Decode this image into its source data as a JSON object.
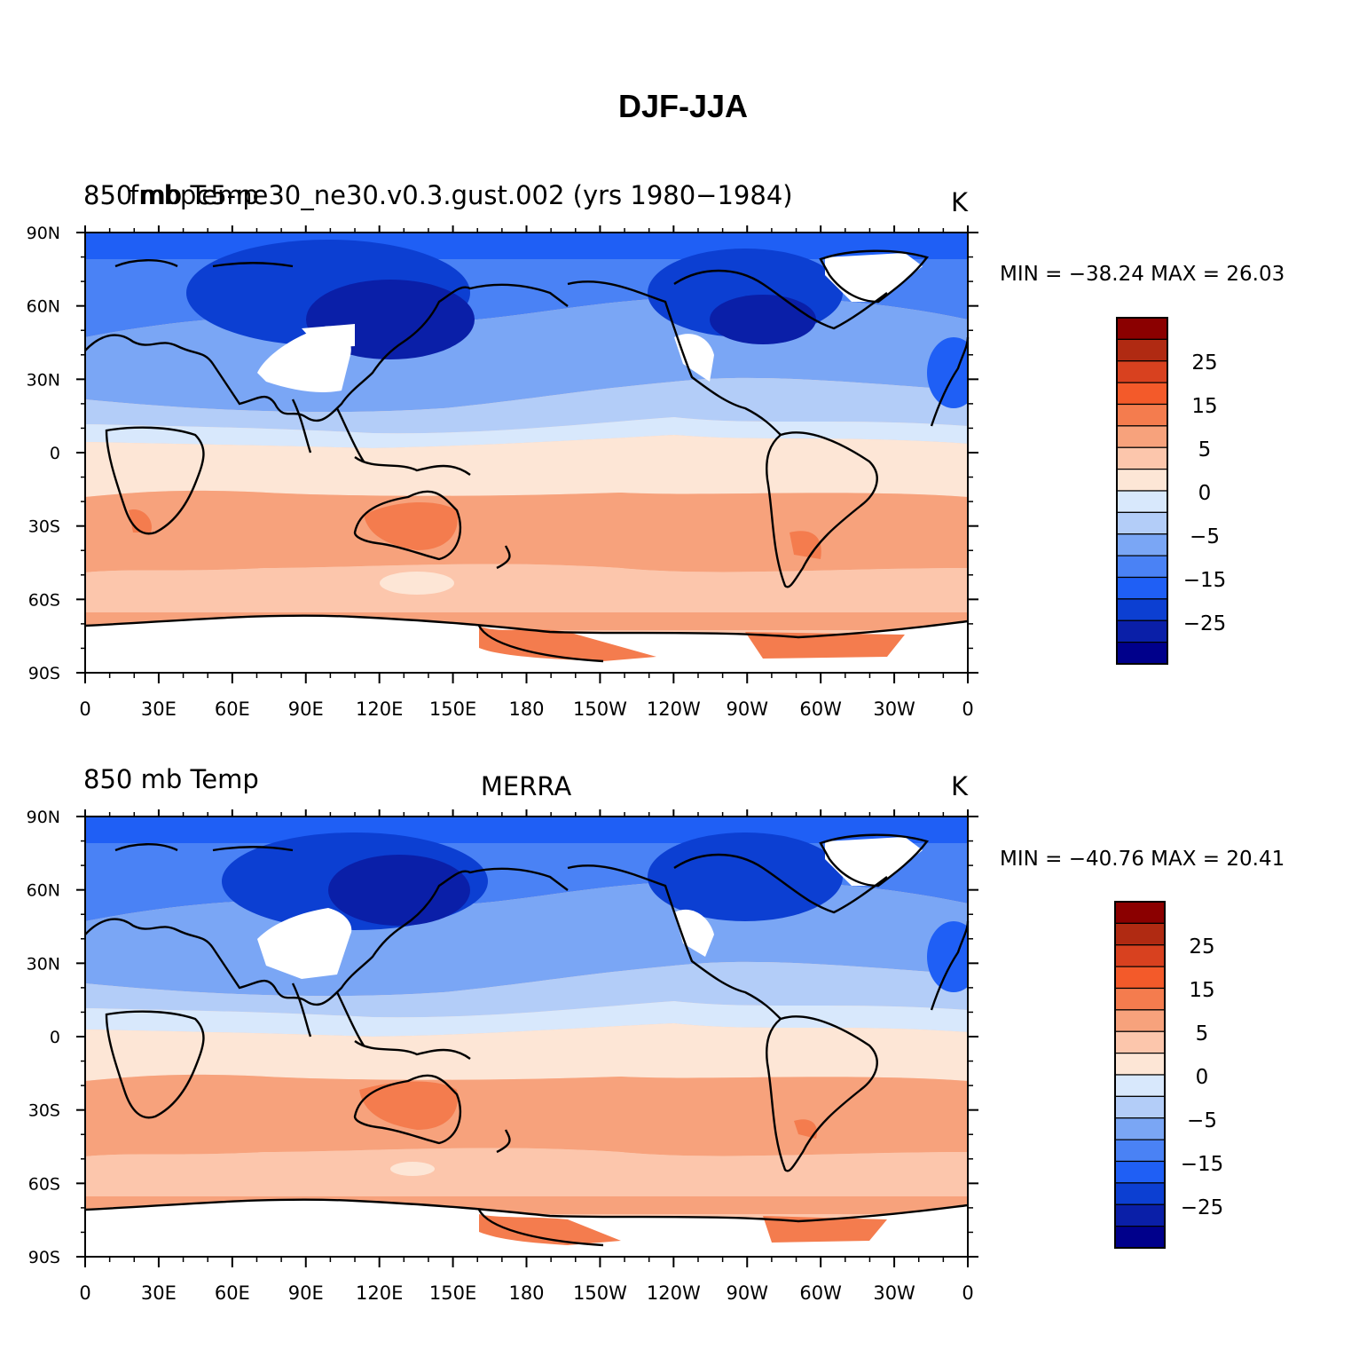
{
  "figure": {
    "title": "DJF-JJA"
  },
  "colorbar": {
    "colors": [
      "#00008b",
      "#0a1fa8",
      "#0c3fd2",
      "#1f5ff5",
      "#4a82f5",
      "#7aa6f5",
      "#b3cdf8",
      "#d8e8fc",
      "#fde6d6",
      "#fcc6ac",
      "#f7a27c",
      "#f47c4e",
      "#f35a2a",
      "#d8411f",
      "#b02a12",
      "#8b0000"
    ],
    "labels": [
      "25",
      "15",
      "5",
      "0",
      "−5",
      "−15",
      "−25"
    ]
  },
  "panels": [
    {
      "left_title": "850 mb Temp",
      "overlay_left": "fmbpc5-ne30_ne30.v0.3.gust.002 (yrs 1980−1984)",
      "center_title": "",
      "units": "K",
      "min_max": "MIN = −38.24 MAX =  26.03"
    },
    {
      "left_title": "850 mb Temp",
      "overlay_left": "",
      "center_title": "MERRA",
      "units": "K",
      "min_max": "MIN = −40.76 MAX =  20.41"
    }
  ],
  "axes": {
    "lat_ticks": [
      "90N",
      "60N",
      "30N",
      "0",
      "30S",
      "60S",
      "90S"
    ],
    "lon_ticks": [
      "0",
      "30E",
      "60E",
      "90E",
      "120E",
      "150E",
      "180",
      "150W",
      "120W",
      "90W",
      "60W",
      "30W",
      "0"
    ]
  }
}
